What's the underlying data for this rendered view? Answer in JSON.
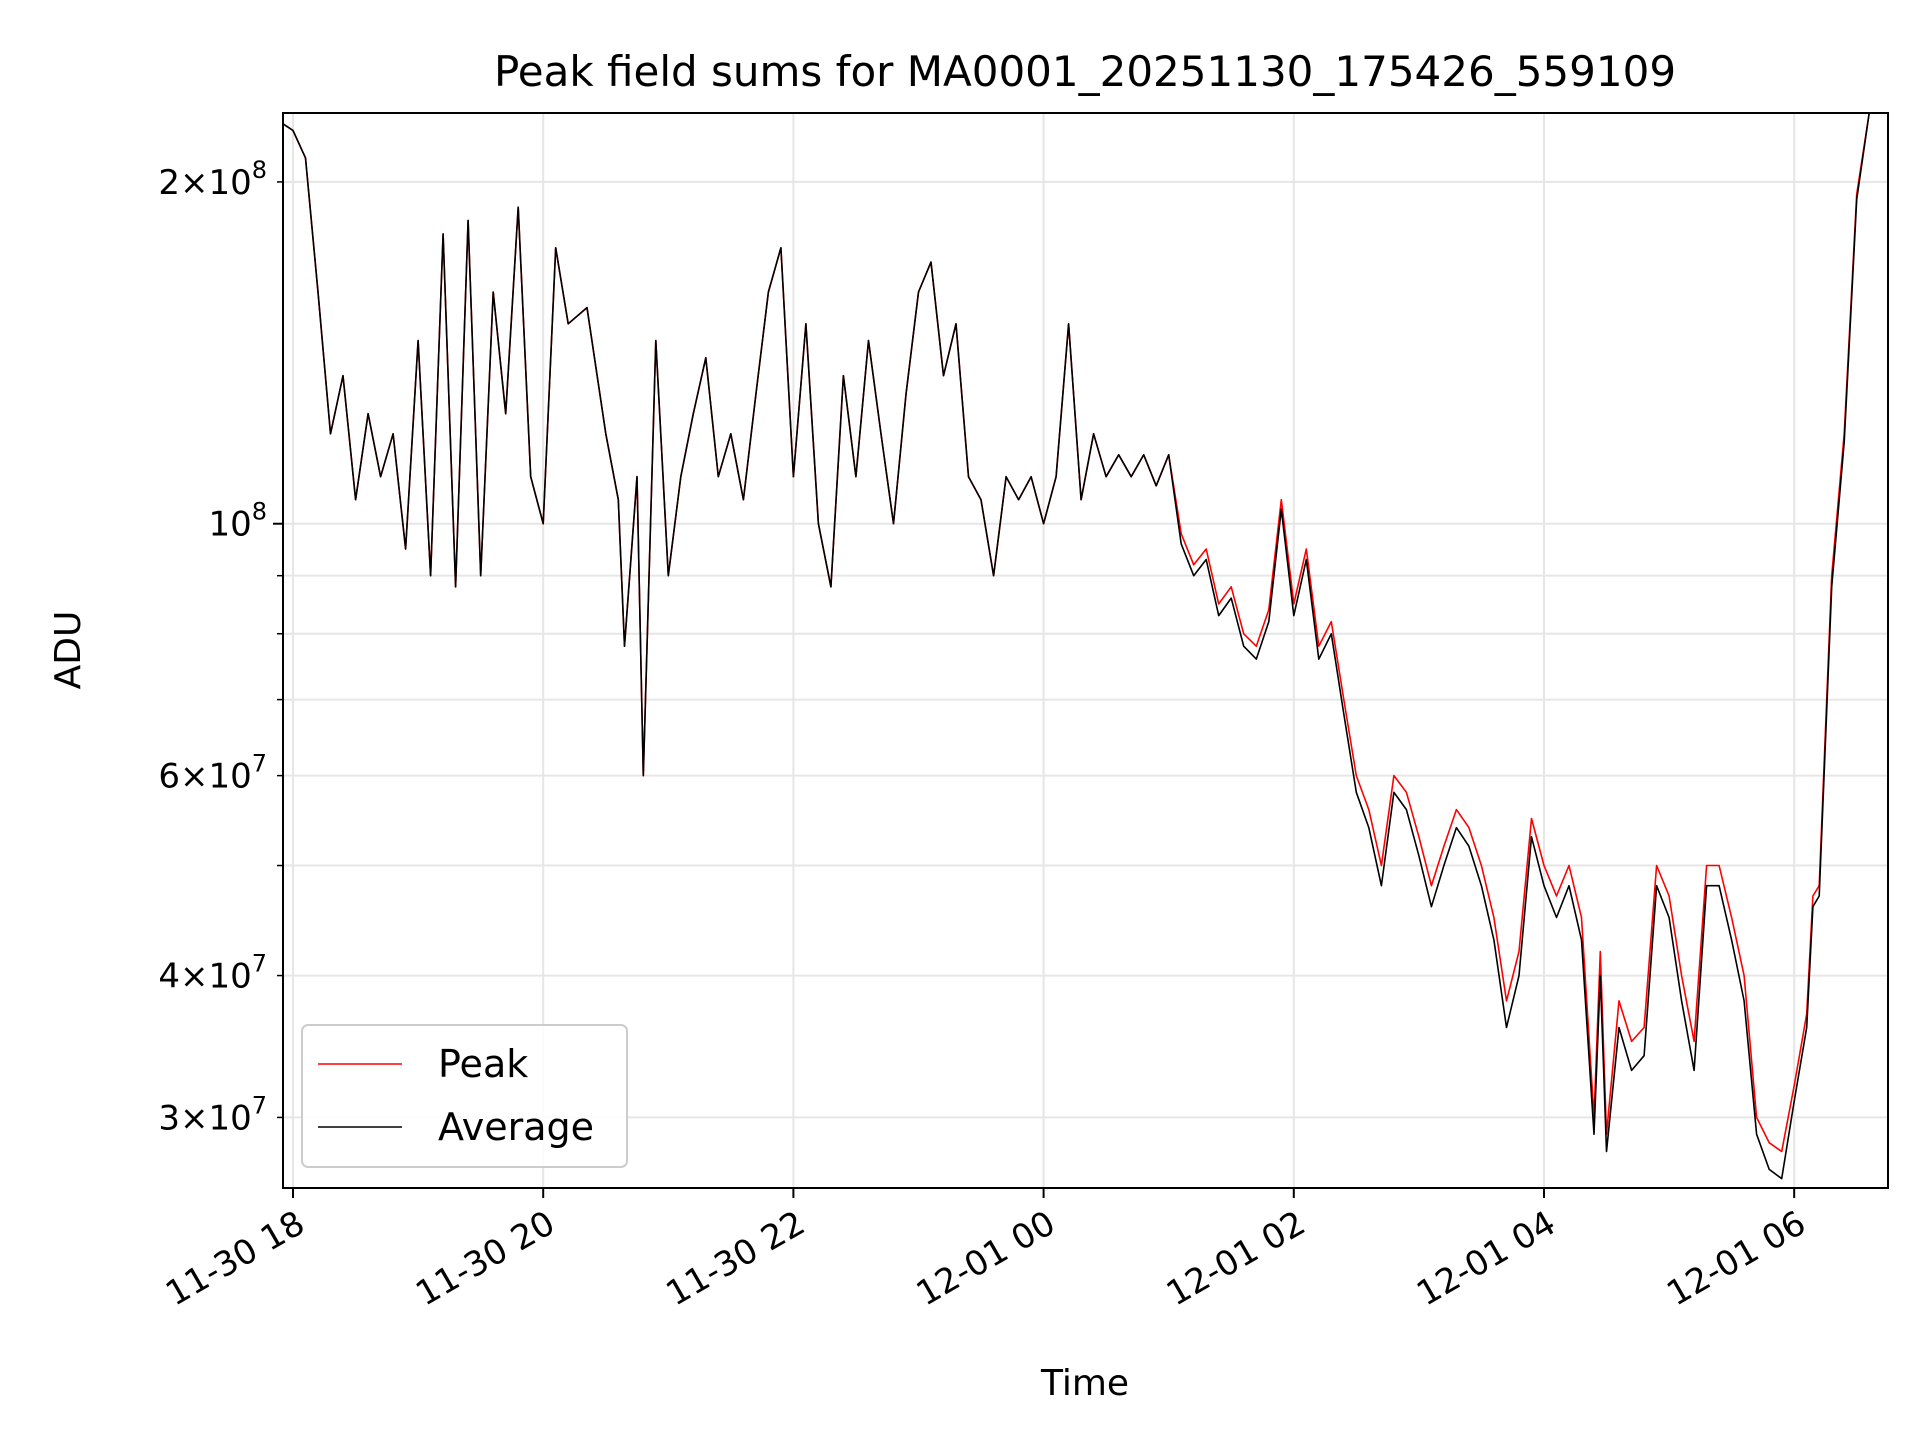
{
  "chart_data": {
    "type": "line",
    "title": "Peak field sums for MA0001_20251130_175426_559109",
    "xlabel": "Time",
    "ylabel": "ADU",
    "yscale": "log",
    "ylim": [
      26000000,
      230000000
    ],
    "xlim_hours": [
      -0.08,
      12.75
    ],
    "grid": true,
    "legend_position": "lower-left",
    "x_ticks": [
      {
        "hour": 0,
        "label": "11-30 18"
      },
      {
        "hour": 2,
        "label": "11-30 20"
      },
      {
        "hour": 4,
        "label": "11-30 22"
      },
      {
        "hour": 6,
        "label": "12-01 00"
      },
      {
        "hour": 8,
        "label": "12-01 02"
      },
      {
        "hour": 10,
        "label": "12-01 04"
      },
      {
        "hour": 12,
        "label": "12-01 06"
      }
    ],
    "y_ticks_major": [
      {
        "value": 100000000,
        "base": "10",
        "exp": "8",
        "coef": ""
      }
    ],
    "y_ticks_minor": [
      {
        "value": 30000000,
        "coef": "3",
        "exp": "7"
      },
      {
        "value": 40000000,
        "coef": "4",
        "exp": "7"
      },
      {
        "value": 60000000,
        "coef": "6",
        "exp": "7"
      },
      {
        "value": 200000000,
        "coef": "2",
        "exp": "8"
      }
    ],
    "y_ticks_unlabeled": [
      50000000,
      70000000,
      80000000,
      90000000
    ],
    "series": [
      {
        "name": "Peak",
        "color": "#ff0000",
        "points": [
          [
            -0.08,
            225000000.0
          ],
          [
            0,
            222000000.0
          ],
          [
            0.1,
            210000000.0
          ],
          [
            0.2,
            160000000.0
          ],
          [
            0.3,
            120000000.0
          ],
          [
            0.4,
            135000000.0
          ],
          [
            0.5,
            105000000.0
          ],
          [
            0.6,
            125000000.0
          ],
          [
            0.7,
            110000000.0
          ],
          [
            0.8,
            120000000.0
          ],
          [
            0.9,
            95000000.0
          ],
          [
            1.0,
            145000000.0
          ],
          [
            1.1,
            90000000.0
          ],
          [
            1.2,
            180000000.0
          ],
          [
            1.3,
            88000000.0
          ],
          [
            1.4,
            185000000.0
          ],
          [
            1.5,
            90000000.0
          ],
          [
            1.6,
            160000000.0
          ],
          [
            1.7,
            125000000.0
          ],
          [
            1.8,
            190000000.0
          ],
          [
            1.9,
            110000000.0
          ],
          [
            2.0,
            100000000.0
          ],
          [
            2.1,
            175000000.0
          ],
          [
            2.2,
            150000000.0
          ],
          [
            2.35,
            155000000.0
          ],
          [
            2.5,
            120000000.0
          ],
          [
            2.6,
            105000000.0
          ],
          [
            2.65,
            78000000.0
          ],
          [
            2.75,
            110000000.0
          ],
          [
            2.8,
            60000000.0
          ],
          [
            2.9,
            145000000.0
          ],
          [
            3.0,
            90000000.0
          ],
          [
            3.1,
            110000000.0
          ],
          [
            3.2,
            125000000.0
          ],
          [
            3.3,
            140000000.0
          ],
          [
            3.4,
            110000000.0
          ],
          [
            3.5,
            120000000.0
          ],
          [
            3.6,
            105000000.0
          ],
          [
            3.7,
            130000000.0
          ],
          [
            3.8,
            160000000.0
          ],
          [
            3.9,
            175000000.0
          ],
          [
            4.0,
            110000000.0
          ],
          [
            4.1,
            150000000.0
          ],
          [
            4.2,
            100000000.0
          ],
          [
            4.3,
            88000000.0
          ],
          [
            4.4,
            135000000.0
          ],
          [
            4.5,
            110000000.0
          ],
          [
            4.6,
            145000000.0
          ],
          [
            4.7,
            120000000.0
          ],
          [
            4.8,
            100000000.0
          ],
          [
            4.9,
            130000000.0
          ],
          [
            5.0,
            160000000.0
          ],
          [
            5.1,
            170000000.0
          ],
          [
            5.2,
            135000000.0
          ],
          [
            5.3,
            150000000.0
          ],
          [
            5.4,
            110000000.0
          ],
          [
            5.5,
            105000000.0
          ],
          [
            5.6,
            90000000.0
          ],
          [
            5.7,
            110000000.0
          ],
          [
            5.8,
            105000000.0
          ],
          [
            5.9,
            110000000.0
          ],
          [
            6.0,
            100000000.0
          ],
          [
            6.1,
            110000000.0
          ],
          [
            6.2,
            150000000.0
          ],
          [
            6.3,
            105000000.0
          ],
          [
            6.4,
            120000000.0
          ],
          [
            6.5,
            110000000.0
          ],
          [
            6.6,
            115000000.0
          ],
          [
            6.7,
            110000000.0
          ],
          [
            6.8,
            115000000.0
          ],
          [
            6.9,
            108000000.0
          ],
          [
            7.0,
            115000000.0
          ],
          [
            7.1,
            98000000.0
          ],
          [
            7.2,
            92000000.0
          ],
          [
            7.3,
            95000000.0
          ],
          [
            7.4,
            85000000.0
          ],
          [
            7.5,
            88000000.0
          ],
          [
            7.6,
            80000000.0
          ],
          [
            7.7,
            78000000.0
          ],
          [
            7.8,
            84000000.0
          ],
          [
            7.9,
            105000000.0
          ],
          [
            8.0,
            85000000.0
          ],
          [
            8.1,
            95000000.0
          ],
          [
            8.2,
            78000000.0
          ],
          [
            8.3,
            82000000.0
          ],
          [
            8.4,
            70000000.0
          ],
          [
            8.5,
            60000000.0
          ],
          [
            8.6,
            56000000.0
          ],
          [
            8.7,
            50000000.0
          ],
          [
            8.8,
            60000000.0
          ],
          [
            8.9,
            58000000.0
          ],
          [
            9.0,
            53000000.0
          ],
          [
            9.1,
            48000000.0
          ],
          [
            9.2,
            52000000.0
          ],
          [
            9.3,
            56000000.0
          ],
          [
            9.4,
            54000000.0
          ],
          [
            9.5,
            50000000.0
          ],
          [
            9.6,
            45000000.0
          ],
          [
            9.7,
            38000000.0
          ],
          [
            9.8,
            42000000.0
          ],
          [
            9.9,
            55000000.0
          ],
          [
            10.0,
            50000000.0
          ],
          [
            10.1,
            47000000.0
          ],
          [
            10.2,
            50000000.0
          ],
          [
            10.3,
            45000000.0
          ],
          [
            10.4,
            30000000.0
          ],
          [
            10.45,
            42000000.0
          ],
          [
            10.5,
            29000000.0
          ],
          [
            10.6,
            38000000.0
          ],
          [
            10.7,
            35000000.0
          ],
          [
            10.8,
            36000000.0
          ],
          [
            10.9,
            50000000.0
          ],
          [
            11.0,
            47000000.0
          ],
          [
            11.1,
            40000000.0
          ],
          [
            11.2,
            35000000.0
          ],
          [
            11.3,
            50000000.0
          ],
          [
            11.4,
            50000000.0
          ],
          [
            11.5,
            45000000.0
          ],
          [
            11.6,
            40000000.0
          ],
          [
            11.7,
            30000000.0
          ],
          [
            11.8,
            28500000.0
          ],
          [
            11.9,
            28000000.0
          ],
          [
            12.0,
            32000000.0
          ],
          [
            12.1,
            37000000.0
          ],
          [
            12.15,
            47000000.0
          ],
          [
            12.2,
            48000000.0
          ],
          [
            12.3,
            90000000.0
          ],
          [
            12.4,
            120000000.0
          ],
          [
            12.5,
            195000000.0
          ],
          [
            12.6,
            230000000.0
          ]
        ]
      },
      {
        "name": "Average",
        "color": "#000000",
        "points": [
          [
            -0.08,
            225000000.0
          ],
          [
            0,
            222000000.0
          ],
          [
            0.1,
            210000000.0
          ],
          [
            0.2,
            160000000.0
          ],
          [
            0.3,
            120000000.0
          ],
          [
            0.4,
            135000000.0
          ],
          [
            0.5,
            105000000.0
          ],
          [
            0.6,
            125000000.0
          ],
          [
            0.7,
            110000000.0
          ],
          [
            0.8,
            120000000.0
          ],
          [
            0.9,
            95000000.0
          ],
          [
            1.0,
            145000000.0
          ],
          [
            1.1,
            90000000.0
          ],
          [
            1.2,
            180000000.0
          ],
          [
            1.3,
            88000000.0
          ],
          [
            1.4,
            185000000.0
          ],
          [
            1.5,
            90000000.0
          ],
          [
            1.6,
            160000000.0
          ],
          [
            1.7,
            125000000.0
          ],
          [
            1.8,
            190000000.0
          ],
          [
            1.9,
            110000000.0
          ],
          [
            2.0,
            100000000.0
          ],
          [
            2.1,
            175000000.0
          ],
          [
            2.2,
            150000000.0
          ],
          [
            2.35,
            155000000.0
          ],
          [
            2.5,
            120000000.0
          ],
          [
            2.6,
            105000000.0
          ],
          [
            2.65,
            78000000.0
          ],
          [
            2.75,
            110000000.0
          ],
          [
            2.8,
            60000000.0
          ],
          [
            2.9,
            145000000.0
          ],
          [
            3.0,
            90000000.0
          ],
          [
            3.1,
            110000000.0
          ],
          [
            3.2,
            125000000.0
          ],
          [
            3.3,
            140000000.0
          ],
          [
            3.4,
            110000000.0
          ],
          [
            3.5,
            120000000.0
          ],
          [
            3.6,
            105000000.0
          ],
          [
            3.7,
            130000000.0
          ],
          [
            3.8,
            160000000.0
          ],
          [
            3.9,
            175000000.0
          ],
          [
            4.0,
            110000000.0
          ],
          [
            4.1,
            150000000.0
          ],
          [
            4.2,
            100000000.0
          ],
          [
            4.3,
            88000000.0
          ],
          [
            4.4,
            135000000.0
          ],
          [
            4.5,
            110000000.0
          ],
          [
            4.6,
            145000000.0
          ],
          [
            4.7,
            120000000.0
          ],
          [
            4.8,
            100000000.0
          ],
          [
            4.9,
            130000000.0
          ],
          [
            5.0,
            160000000.0
          ],
          [
            5.1,
            170000000.0
          ],
          [
            5.2,
            135000000.0
          ],
          [
            5.3,
            150000000.0
          ],
          [
            5.4,
            110000000.0
          ],
          [
            5.5,
            105000000.0
          ],
          [
            5.6,
            90000000.0
          ],
          [
            5.7,
            110000000.0
          ],
          [
            5.8,
            105000000.0
          ],
          [
            5.9,
            110000000.0
          ],
          [
            6.0,
            100000000.0
          ],
          [
            6.1,
            110000000.0
          ],
          [
            6.2,
            150000000.0
          ],
          [
            6.3,
            105000000.0
          ],
          [
            6.4,
            120000000.0
          ],
          [
            6.5,
            110000000.0
          ],
          [
            6.6,
            115000000.0
          ],
          [
            6.7,
            110000000.0
          ],
          [
            6.8,
            115000000.0
          ],
          [
            6.9,
            108000000.0
          ],
          [
            7.0,
            115000000.0
          ],
          [
            7.1,
            96000000.0
          ],
          [
            7.2,
            90000000.0
          ],
          [
            7.3,
            93000000.0
          ],
          [
            7.4,
            83000000.0
          ],
          [
            7.5,
            86000000.0
          ],
          [
            7.6,
            78000000.0
          ],
          [
            7.7,
            76000000.0
          ],
          [
            7.8,
            82000000.0
          ],
          [
            7.9,
            103000000.0
          ],
          [
            8.0,
            83000000.0
          ],
          [
            8.1,
            93000000.0
          ],
          [
            8.2,
            76000000.0
          ],
          [
            8.3,
            80000000.0
          ],
          [
            8.4,
            68000000.0
          ],
          [
            8.5,
            58000000.0
          ],
          [
            8.6,
            54000000.0
          ],
          [
            8.7,
            48000000.0
          ],
          [
            8.8,
            58000000.0
          ],
          [
            8.9,
            56000000.0
          ],
          [
            9.0,
            51000000.0
          ],
          [
            9.1,
            46000000.0
          ],
          [
            9.2,
            50000000.0
          ],
          [
            9.3,
            54000000.0
          ],
          [
            9.4,
            52000000.0
          ],
          [
            9.5,
            48000000.0
          ],
          [
            9.6,
            43000000.0
          ],
          [
            9.7,
            36000000.0
          ],
          [
            9.8,
            40000000.0
          ],
          [
            9.9,
            53000000.0
          ],
          [
            10.0,
            48000000.0
          ],
          [
            10.1,
            45000000.0
          ],
          [
            10.2,
            48000000.0
          ],
          [
            10.3,
            43000000.0
          ],
          [
            10.4,
            29000000.0
          ],
          [
            10.45,
            40000000.0
          ],
          [
            10.5,
            28000000.0
          ],
          [
            10.6,
            36000000.0
          ],
          [
            10.7,
            33000000.0
          ],
          [
            10.8,
            34000000.0
          ],
          [
            10.9,
            48000000.0
          ],
          [
            11.0,
            45000000.0
          ],
          [
            11.1,
            38000000.0
          ],
          [
            11.2,
            33000000.0
          ],
          [
            11.3,
            48000000.0
          ],
          [
            11.4,
            48000000.0
          ],
          [
            11.5,
            43000000.0
          ],
          [
            11.6,
            38000000.0
          ],
          [
            11.7,
            29000000.0
          ],
          [
            11.8,
            27000000.0
          ],
          [
            11.9,
            26500000.0
          ],
          [
            12.0,
            31000000.0
          ],
          [
            12.1,
            36000000.0
          ],
          [
            12.15,
            46000000.0
          ],
          [
            12.2,
            47000000.0
          ],
          [
            12.3,
            88000000.0
          ],
          [
            12.4,
            118000000.0
          ],
          [
            12.5,
            193000000.0
          ],
          [
            12.6,
            230000000.0
          ]
        ]
      }
    ]
  }
}
